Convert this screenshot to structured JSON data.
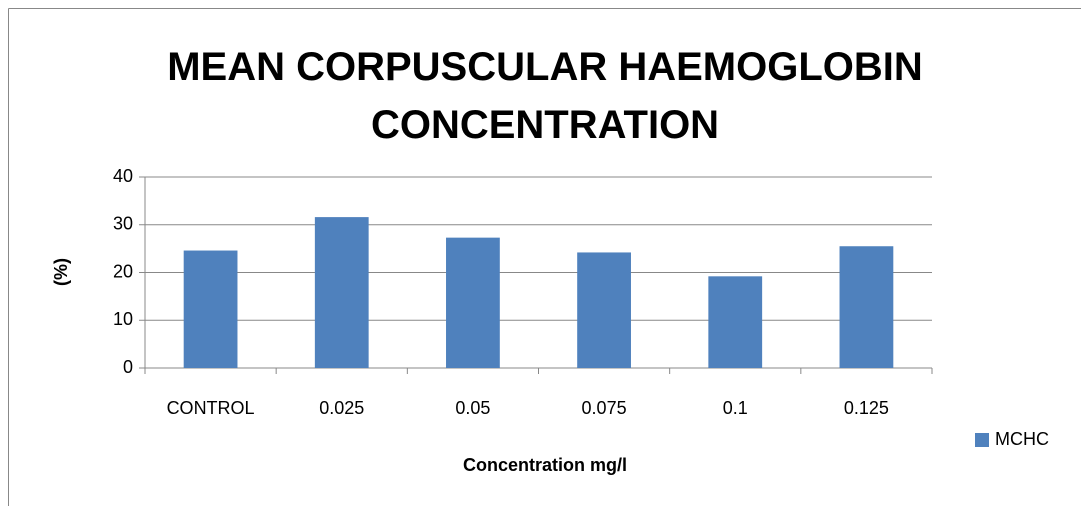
{
  "chart_data": {
    "type": "bar",
    "title": "MEAN CORPUSCULAR HAEMOGLOBIN CONCENTRATION",
    "x_label": "Concentration mg/l",
    "y_label": "(%)",
    "categories": [
      "CONTROL",
      "0.025",
      "0.05",
      "0.075",
      "0.1",
      "0.125"
    ],
    "series": [
      {
        "name": "MCHC",
        "color": "#4f81bd",
        "values": [
          24.6,
          31.6,
          27.3,
          24.2,
          19.2,
          25.5
        ]
      }
    ],
    "ylim": [
      0,
      40
    ],
    "yticks": [
      0,
      10,
      20,
      30,
      40
    ],
    "grid": true,
    "legend": "right"
  }
}
